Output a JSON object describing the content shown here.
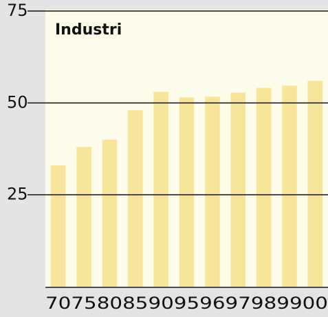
{
  "chart_data": {
    "type": "bar",
    "title": "Industri",
    "categories": [
      "70",
      "75",
      "80",
      "85",
      "90",
      "95",
      "96",
      "97",
      "98",
      "99",
      "00"
    ],
    "values": [
      33,
      38,
      40,
      48,
      53,
      51.5,
      51.7,
      52.8,
      54.1,
      54.7,
      56
    ],
    "color": "#f7e59c",
    "ylim": [
      0,
      75
    ],
    "yticks": [
      25,
      50,
      75
    ],
    "grid": true
  }
}
